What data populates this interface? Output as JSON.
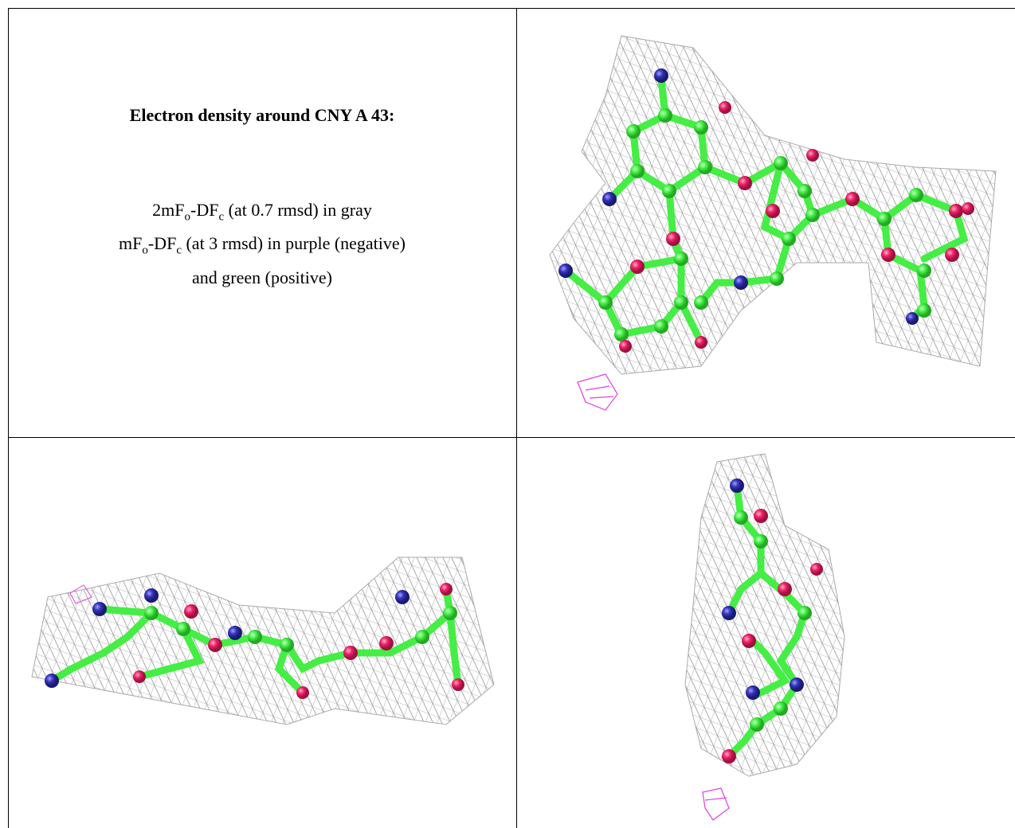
{
  "caption": {
    "title": "Electron density around CNY A 43:",
    "lines": [
      {
        "segments": [
          {
            "text": "2mF",
            "sub": false
          },
          {
            "text": "o",
            "sub": true
          },
          {
            "text": "-DF",
            "sub": false
          },
          {
            "text": "c",
            "sub": true
          },
          {
            "text": " (at 0.7 rmsd) in gray",
            "sub": false
          }
        ]
      },
      {
        "segments": [
          {
            "text": "mF",
            "sub": false
          },
          {
            "text": "o",
            "sub": true
          },
          {
            "text": "-DF",
            "sub": false
          },
          {
            "text": "c",
            "sub": true
          },
          {
            "text": " (at 3 rmsd) in purple (negative)",
            "sub": false
          }
        ]
      },
      {
        "segments": [
          {
            "text": "and green (positive)",
            "sub": false
          }
        ]
      }
    ]
  }
}
